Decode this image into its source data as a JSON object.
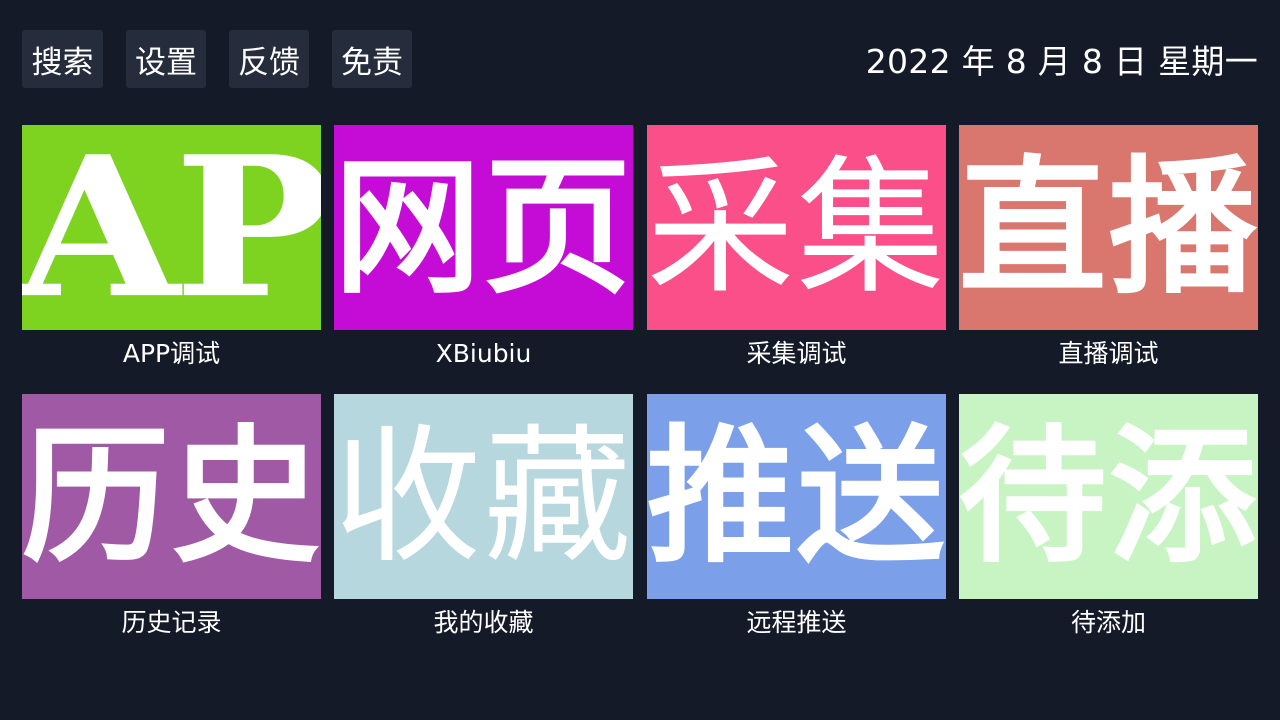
{
  "toolbar": {
    "search_label": "搜索",
    "settings_label": "设置",
    "feedback_label": "反馈",
    "disclaimer_label": "免责"
  },
  "date": "2022 年 8 月 8 日 星期一",
  "tiles": [
    {
      "graphic": "AP",
      "label": "APP调试",
      "color": "#7ed321"
    },
    {
      "graphic": "网页",
      "label": "XBiubiu",
      "color": "#c50bd6"
    },
    {
      "graphic": "采集",
      "label": "采集调试",
      "color": "#fb4f8a"
    },
    {
      "graphic": "直播",
      "label": "直播调试",
      "color": "#d9776f"
    },
    {
      "graphic": "历史",
      "label": "历史记录",
      "color": "#a05aa5"
    },
    {
      "graphic": "收藏",
      "label": "我的收藏",
      "color": "#b6d7dd"
    },
    {
      "graphic": "推送",
      "label": "远程推送",
      "color": "#7b9fe9"
    },
    {
      "graphic": "待添",
      "label": "待添加",
      "color": "#c8f3c2"
    }
  ],
  "colors": {
    "background": "#141a27",
    "button_background": "#252c3b",
    "text": "#ffffff"
  }
}
